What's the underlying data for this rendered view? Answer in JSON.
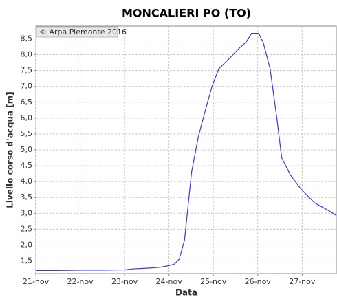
{
  "chart_data": {
    "type": "line",
    "title": "MONCALIERI PO (TO)",
    "x_label": "Data",
    "y_label": "Livello corso d'acqua [m]",
    "annotation": "© Arpa Piemonte 2016",
    "x": [
      0,
      0.5,
      1,
      1.5,
      2,
      2.2,
      2.5,
      2.8,
      3.0,
      3.12,
      3.23,
      3.35,
      3.51,
      3.66,
      3.82,
      3.97,
      4.12,
      4.35,
      4.58,
      4.74,
      4.86,
      5.02,
      5.12,
      5.28,
      5.43,
      5.54,
      5.74,
      5.97,
      6.28,
      6.58,
      6.77
    ],
    "series": [
      {
        "name": "Livello",
        "color": "#3a3ad0",
        "values": [
          1.2,
          1.2,
          1.21,
          1.21,
          1.22,
          1.25,
          1.27,
          1.3,
          1.35,
          1.4,
          1.55,
          2.15,
          4.3,
          5.4,
          6.25,
          7.0,
          7.55,
          7.87,
          8.2,
          8.4,
          8.67,
          8.67,
          8.4,
          7.55,
          6.0,
          4.75,
          4.2,
          3.77,
          3.33,
          3.1,
          2.93
        ]
      }
    ],
    "xlim": [
      0,
      6.77
    ],
    "xticks": [
      {
        "value": 0,
        "label": "21-nov"
      },
      {
        "value": 1,
        "label": "22-nov"
      },
      {
        "value": 2,
        "label": "23-nov"
      },
      {
        "value": 3,
        "label": "24-nov"
      },
      {
        "value": 4,
        "label": "25-nov"
      },
      {
        "value": 5,
        "label": "26-nov"
      },
      {
        "value": 6,
        "label": "27-nov"
      }
    ],
    "ylim": [
      1.1,
      8.9
    ],
    "yticks": [
      {
        "value": 1.5,
        "label": "1,5"
      },
      {
        "value": 2.0,
        "label": "2,0"
      },
      {
        "value": 2.5,
        "label": "2,5"
      },
      {
        "value": 3.0,
        "label": "3,0"
      },
      {
        "value": 3.5,
        "label": "3,5"
      },
      {
        "value": 4.0,
        "label": "4,0"
      },
      {
        "value": 4.5,
        "label": "4,5"
      },
      {
        "value": 5.0,
        "label": "5,0"
      },
      {
        "value": 5.5,
        "label": "5,5"
      },
      {
        "value": 6.0,
        "label": "6,0"
      },
      {
        "value": 6.5,
        "label": "6,5"
      },
      {
        "value": 7.0,
        "label": "7,0"
      },
      {
        "value": 7.5,
        "label": "7,5"
      },
      {
        "value": 8.0,
        "label": "8,0"
      },
      {
        "value": 8.5,
        "label": "8,5"
      }
    ],
    "grid": true
  }
}
